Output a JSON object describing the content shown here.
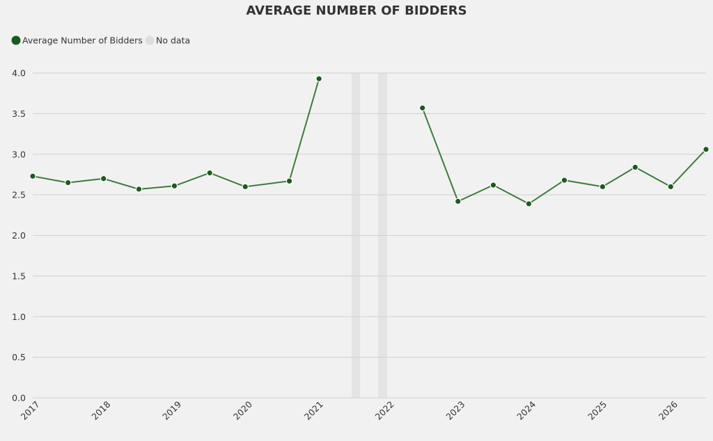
{
  "chart_data": {
    "type": "line",
    "title": "AVERAGE NUMBER OF BIDDERS",
    "xlabel": "",
    "ylabel": "",
    "ylim": [
      0,
      4
    ],
    "yticks": [
      "0.0",
      "0.5",
      "1.0",
      "1.5",
      "2.0",
      "2.5",
      "3.0",
      "3.5",
      "4.0"
    ],
    "xlim": [
      "2016-12-01",
      "2026-06-01"
    ],
    "xticks": [
      "2017",
      "2018",
      "2019",
      "2020",
      "2021",
      "2022",
      "2023",
      "2024",
      "2025",
      "2026"
    ],
    "grid": "horizontal",
    "legend_position": "top-left",
    "legend": [
      {
        "label": "Average Number of Bidders",
        "color": "#1e5a1e"
      },
      {
        "label": "No data",
        "color": "#dddddd"
      }
    ],
    "series": [
      {
        "name": "Average Number of Bidders",
        "color": "#3d7a3d",
        "marker_color": "#1e5a1e",
        "points": [
          {
            "x": "2016-12-01",
            "y": 2.73
          },
          {
            "x": "2017-06-01",
            "y": 2.65
          },
          {
            "x": "2017-12-01",
            "y": 2.7
          },
          {
            "x": "2018-06-01",
            "y": 2.57
          },
          {
            "x": "2018-12-01",
            "y": 2.61
          },
          {
            "x": "2019-06-01",
            "y": 2.77
          },
          {
            "x": "2019-12-01",
            "y": 2.6
          },
          {
            "x": "2020-07-15",
            "y": 2.67
          },
          {
            "x": "2020-12-15",
            "y": 3.93
          },
          {
            "x": "2022-06-01",
            "y": 3.57
          },
          {
            "x": "2022-12-01",
            "y": 2.42
          },
          {
            "x": "2023-06-01",
            "y": 2.62
          },
          {
            "x": "2023-12-01",
            "y": 2.39
          },
          {
            "x": "2024-06-01",
            "y": 2.68
          },
          {
            "x": "2024-12-15",
            "y": 2.6
          },
          {
            "x": "2025-06-01",
            "y": 2.84
          },
          {
            "x": "2025-12-01",
            "y": 2.6
          },
          {
            "x": "2026-06-01",
            "y": 3.06
          }
        ],
        "gap_after_index": 8
      }
    ],
    "no_data_periods": [
      {
        "start": "2021-06-01",
        "end": "2021-07-15"
      },
      {
        "start": "2021-10-15",
        "end": "2021-12-01"
      }
    ]
  }
}
